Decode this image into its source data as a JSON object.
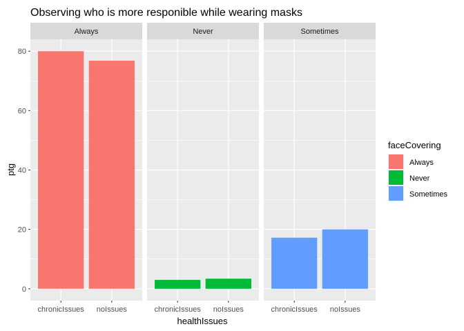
{
  "chart_data": {
    "type": "bar",
    "title": "Observing who is more responible while wearing masks",
    "xlabel": "healthIssues",
    "ylabel": "ptg",
    "ylim": [
      0,
      80
    ],
    "yticks": [
      0,
      20,
      40,
      60,
      80
    ],
    "categories": [
      "chronicIssues",
      "noIssues"
    ],
    "facets": [
      {
        "name": "Always",
        "color": "#F8766D",
        "values": [
          80.0,
          76.8
        ]
      },
      {
        "name": "Never",
        "color": "#00BA38",
        "values": [
          3.0,
          3.4
        ]
      },
      {
        "name": "Sometimes",
        "color": "#619CFF",
        "values": [
          17.2,
          20.0
        ]
      }
    ],
    "legend": {
      "title": "faceCovering",
      "placement": "right",
      "items": [
        {
          "label": "Always",
          "color": "#F8766D"
        },
        {
          "label": "Never",
          "color": "#00BA38"
        },
        {
          "label": "Sometimes",
          "color": "#619CFF"
        }
      ]
    },
    "grid": true
  }
}
